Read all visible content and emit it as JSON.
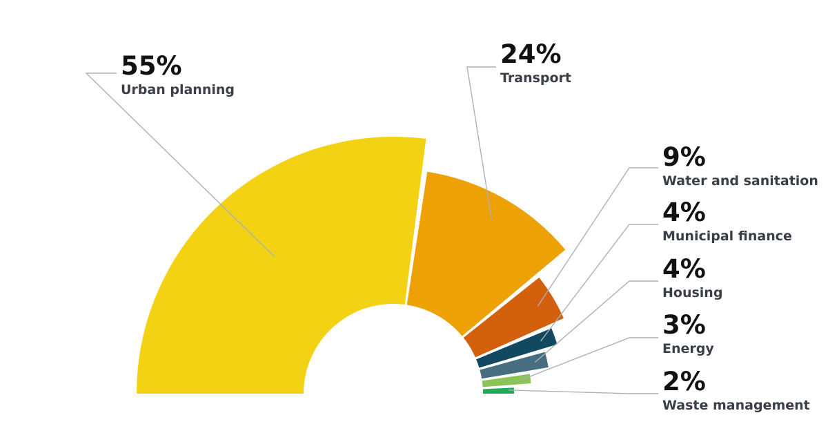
{
  "chart_data": {
    "type": "pie",
    "variant": "semi-donut with variable radius slices",
    "title": "",
    "legend": "none",
    "slices": [
      {
        "label": "Urban planning",
        "value": 55,
        "value_label": "55%",
        "color": "#f2d212"
      },
      {
        "label": "Transport",
        "value": 24,
        "value_label": "24%",
        "color": "#eda104"
      },
      {
        "label": "Water and sanitation",
        "value": 9,
        "value_label": "9%",
        "color": "#d2600c"
      },
      {
        "label": "Municipal finance",
        "value": 4,
        "value_label": "4%",
        "color": "#124961"
      },
      {
        "label": "Housing",
        "value": 4,
        "value_label": "4%",
        "color": "#476e80"
      },
      {
        "label": "Energy",
        "value": 3,
        "value_label": "3%",
        "color": "#8cc45a"
      },
      {
        "label": "Waste management",
        "value": 2,
        "value_label": "2%",
        "color": "#24a85a"
      }
    ]
  }
}
